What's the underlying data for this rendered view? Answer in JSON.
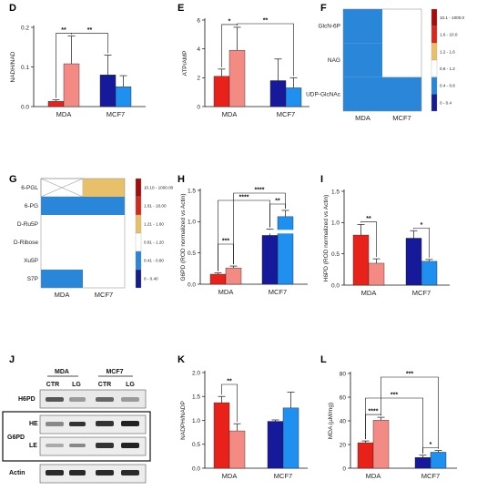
{
  "colors": {
    "mda_ctr": "#e8221b",
    "mda_lg": "#f48a84",
    "mcf7_ctr": "#16199a",
    "mcf7_lg": "#1f8ff0",
    "heat_dark_red": "#a50c0c",
    "heat_red": "#d42a1e",
    "heat_orange": "#e8c06a",
    "heat_white": "#ffffff",
    "heat_light_blue": "#2a86d8",
    "heat_mid_blue": "#1566c4",
    "heat_navy": "#141c8e"
  },
  "chart_data": [
    {
      "panel": "D",
      "type": "bar",
      "categories": [
        "MDA",
        "MCF7"
      ],
      "ylabel": "NADH/NAD",
      "ylim": [
        0,
        0.2
      ],
      "yticks": [
        "0.0",
        "0.1",
        "0.2"
      ],
      "series": [
        {
          "values": [
            0.013,
            0.08
          ],
          "errors": [
            0.004,
            0.05
          ]
        },
        {
          "values": [
            0.108,
            0.05
          ],
          "errors": [
            0.07,
            0.028
          ]
        }
      ],
      "significance": [
        "**",
        "**"
      ]
    },
    {
      "panel": "E",
      "type": "bar",
      "categories": [
        "MDA",
        "MCF7"
      ],
      "ylabel": "ATP/AMP",
      "ylim": [
        0,
        6
      ],
      "yticks": [
        "0",
        "2",
        "4",
        "6"
      ],
      "series": [
        {
          "values": [
            2.1,
            1.8
          ],
          "errors": [
            0.5,
            1.5
          ]
        },
        {
          "values": [
            3.9,
            1.3
          ],
          "errors": [
            1.6,
            0.7
          ]
        }
      ],
      "significance": [
        "*",
        "**"
      ]
    },
    {
      "panel": "F",
      "type": "heatmap",
      "rows": [
        "GlcN-6P",
        "NAG",
        "UDP-GlcNAc"
      ],
      "columns": [
        "MDA",
        "MCF7"
      ],
      "cells": [
        [
          "0.4 - 0.8",
          "0.8 - 1.2"
        ],
        [
          "0.4 - 0.8",
          "0.8 - 1.2"
        ],
        [
          "0.4 - 0.8",
          "0.4 - 0.8"
        ]
      ],
      "legend": [
        "10.1 - 1000.0",
        "1.6 - 10.0",
        "1.2 - 1.6",
        "0.8 - 1.2",
        "0.4 - 0.8",
        "0 - 0.4"
      ]
    },
    {
      "panel": "G",
      "type": "heatmap",
      "rows": [
        "6-PGL",
        "6-PG",
        "D-Ru5P",
        "D-Ribose",
        "Xu5P",
        "S7P"
      ],
      "columns": [
        "MDA",
        "MCF7"
      ],
      "cells": [
        [
          "not detected",
          "1.21 - 1.60"
        ],
        [
          "0.41 - 0.80",
          "0.41 - 0.80"
        ],
        [
          "0.81 - 1.20",
          "0.81 - 1.20"
        ],
        [
          "0.81 - 1.20",
          "0.81 - 1.20"
        ],
        [
          "0.81 - 1.20",
          "0.81 - 1.20"
        ],
        [
          "0.41 - 0.80",
          "0.81 - 1.20"
        ]
      ],
      "legend": [
        "10.10 - 1000.00",
        "1.61 - 10.00",
        "1.21 - 1.60",
        "0.81 - 1.20",
        "0.41 - 0.80",
        "0 - 0.40"
      ]
    },
    {
      "panel": "H",
      "type": "bar",
      "categories": [
        "MDA",
        "MCF7"
      ],
      "ylabel": "G6PD (ROD normalized vs Actin)",
      "ylim": [
        0,
        1.5
      ],
      "yticks": [
        "0.0",
        "0.5",
        "1.0",
        "1.5"
      ],
      "series": [
        {
          "values": [
            0.16,
            0.78
          ],
          "errors": [
            0.02,
            0.1
          ]
        },
        {
          "values": [
            0.26,
            1.08
          ],
          "errors": [
            0.03,
            0.1
          ]
        }
      ],
      "significance": [
        "***",
        "****",
        "****",
        "**"
      ]
    },
    {
      "panel": "I",
      "type": "bar",
      "categories": [
        "MDA",
        "MCF7"
      ],
      "ylabel": "H6PD (ROD normalized vs Actin)",
      "ylim": [
        0,
        1.5
      ],
      "yticks": [
        "0.0",
        "0.5",
        "1.0",
        "1.5"
      ],
      "series": [
        {
          "values": [
            0.8,
            0.75
          ],
          "errors": [
            0.17,
            0.12
          ]
        },
        {
          "values": [
            0.35,
            0.38
          ],
          "errors": [
            0.07,
            0.03
          ]
        }
      ],
      "significance": [
        "**",
        "*"
      ]
    },
    {
      "panel": "K",
      "type": "bar",
      "categories": [
        "MDA",
        "MCF7"
      ],
      "ylabel": "NADPH/NADP",
      "ylim": [
        0,
        2.0
      ],
      "yticks": [
        "0.0",
        "0.5",
        "1.0",
        "1.5",
        "2.0"
      ],
      "series": [
        {
          "values": [
            1.37,
            0.98
          ],
          "errors": [
            0.13,
            0.03
          ]
        },
        {
          "values": [
            0.78,
            1.26
          ],
          "errors": [
            0.15,
            0.33
          ]
        }
      ],
      "significance": [
        "**"
      ]
    },
    {
      "panel": "L",
      "type": "bar",
      "categories": [
        "MDA",
        "MCF7"
      ],
      "ylabel": "MDA (µM/mg)",
      "ylim": [
        0,
        80
      ],
      "yticks": [
        "0",
        "20",
        "40",
        "60",
        "80"
      ],
      "series": [
        {
          "values": [
            21.5,
            9.0
          ],
          "errors": [
            1.5,
            2.0
          ]
        },
        {
          "values": [
            40.5,
            13.5
          ],
          "errors": [
            2.5,
            1.5
          ]
        }
      ],
      "significance": [
        "****",
        "***",
        "***",
        "*"
      ]
    }
  ],
  "blot": {
    "panel": "J",
    "groups": [
      "MDA",
      "MCF7"
    ],
    "lanes": [
      "CTR",
      "LG",
      "CTR",
      "LG"
    ],
    "rows": [
      "H6PD",
      "G6PD",
      "HE",
      "LE",
      "Actin"
    ]
  },
  "panel_letters": [
    "D",
    "E",
    "F",
    "G",
    "H",
    "I",
    "J",
    "K",
    "L"
  ]
}
